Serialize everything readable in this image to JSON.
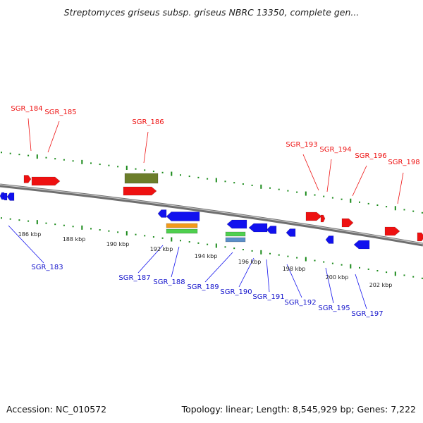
{
  "title": "Streptomyces griseus subsp. griseus NBRC 13350, complete gen...",
  "accession": "Accession: NC_010572",
  "summary": "Topology: linear; Length: 8,545,929 bp; Genes: 7,222",
  "colors": {
    "forward_gene": "#ee1111",
    "reverse_gene": "#1111ee",
    "forward_track": "#1a8a1a",
    "backbone": "#888888",
    "olive_feature": "#6b7d2a",
    "orange_feature": "#f29a1a",
    "green_feature": "#4fcf4f",
    "steel_feature": "#5b8fc9"
  },
  "scale_labels": [
    "186 kbp",
    "188 kbp",
    "190 kbp",
    "192 kbp",
    "194 kbp",
    "196 kbp",
    "198 kbp",
    "200 kbp",
    "202 kbp"
  ],
  "forward_labels": [
    "SGR_184",
    "SGR_185",
    "SGR_186",
    "SGR_193",
    "SGR_194",
    "SGR_196",
    "SGR_198"
  ],
  "reverse_labels": [
    "SGR_183",
    "SGR_187",
    "SGR_188",
    "SGR_189",
    "SGR_190",
    "SGR_191",
    "SGR_192",
    "SGR_195",
    "SGR_197"
  ]
}
